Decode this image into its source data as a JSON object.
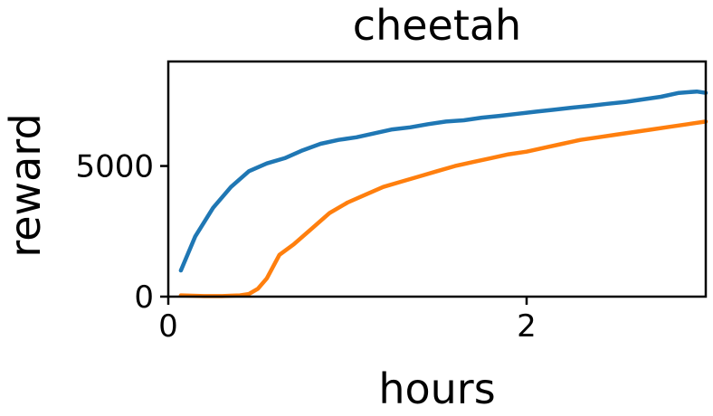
{
  "chart_data": {
    "type": "line",
    "title": "cheetah",
    "xlabel": "hours",
    "ylabel": "reward",
    "xlim": [
      0,
      3
    ],
    "ylim": [
      0,
      9000
    ],
    "xticks": [
      0,
      2
    ],
    "xtick_labels": [
      "0",
      "2"
    ],
    "yticks": [
      0,
      5000
    ],
    "ytick_labels": [
      "0",
      "5000"
    ],
    "grid": false,
    "legend": "none",
    "series": [
      {
        "color": "#1f77b4",
        "x": [
          0.07,
          0.15,
          0.25,
          0.35,
          0.45,
          0.55,
          0.65,
          0.75,
          0.85,
          0.95,
          1.05,
          1.15,
          1.25,
          1.35,
          1.45,
          1.55,
          1.65,
          1.75,
          1.85,
          1.95,
          2.05,
          2.15,
          2.25,
          2.35,
          2.45,
          2.55,
          2.65,
          2.75,
          2.85,
          2.95,
          3.0
        ],
        "y": [
          1000,
          2300,
          3400,
          4200,
          4800,
          5100,
          5300,
          5600,
          5850,
          6000,
          6100,
          6250,
          6400,
          6480,
          6600,
          6700,
          6750,
          6850,
          6920,
          7000,
          7080,
          7150,
          7230,
          7300,
          7380,
          7450,
          7550,
          7650,
          7800,
          7850,
          7800
        ]
      },
      {
        "color": "#ff7f0e",
        "x": [
          0.07,
          0.2,
          0.3,
          0.4,
          0.45,
          0.5,
          0.55,
          0.62,
          0.7,
          0.8,
          0.9,
          1.0,
          1.1,
          1.2,
          1.3,
          1.4,
          1.5,
          1.6,
          1.7,
          1.8,
          1.9,
          2.0,
          2.1,
          2.2,
          2.3,
          2.4,
          2.5,
          2.6,
          2.7,
          2.8,
          2.9,
          3.0
        ],
        "y": [
          50,
          20,
          20,
          50,
          100,
          300,
          700,
          1600,
          2000,
          2600,
          3200,
          3600,
          3900,
          4200,
          4400,
          4600,
          4800,
          5000,
          5150,
          5300,
          5450,
          5550,
          5700,
          5850,
          6000,
          6100,
          6200,
          6300,
          6400,
          6500,
          6600,
          6700
        ]
      }
    ]
  }
}
